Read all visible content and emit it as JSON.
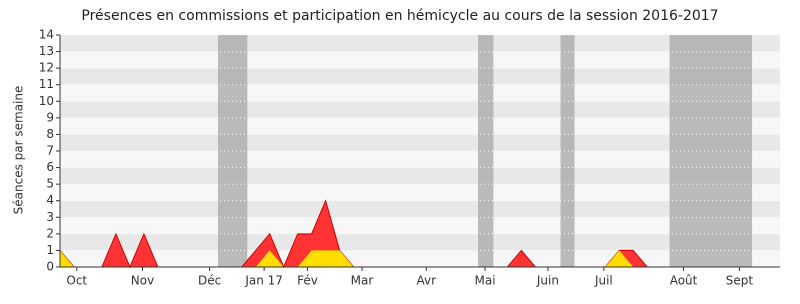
{
  "chart_data": {
    "type": "area",
    "title": "Présences en commissions et participation en hémicycle au cours de la session 2016-2017",
    "y_label": "Séances par semaine",
    "x": [
      0,
      1,
      2,
      3,
      4,
      5,
      6,
      7,
      8,
      9,
      10,
      11,
      12,
      13,
      14,
      15,
      16,
      17,
      18,
      19,
      20,
      21,
      22,
      23,
      24,
      25,
      26,
      27,
      28,
      29,
      30,
      31,
      32,
      33,
      34,
      35,
      36,
      37,
      38,
      39,
      40,
      41,
      42,
      43,
      44,
      45,
      46,
      47,
      48,
      49,
      50,
      51
    ],
    "series": [
      {
        "color": "#ff3333",
        "values": [
          1,
          0,
          0,
          0,
          2,
          0,
          2,
          0,
          0,
          0,
          0,
          0,
          0,
          0,
          1,
          2,
          0,
          2,
          2,
          4,
          1,
          0,
          0,
          0,
          0,
          0,
          0,
          0,
          0,
          0,
          0,
          0,
          0,
          1,
          0,
          0,
          0,
          0,
          0,
          0,
          1,
          1,
          0,
          0,
          0,
          0,
          0,
          0,
          0,
          0,
          0,
          0
        ]
      },
      {
        "color": "#ffdd00",
        "values": [
          1,
          0,
          0,
          0,
          0,
          0,
          0,
          0,
          0,
          0,
          0,
          0,
          0,
          0,
          0,
          1,
          0,
          0,
          1,
          1,
          1,
          0,
          0,
          0,
          0,
          0,
          0,
          0,
          0,
          0,
          0,
          0,
          0,
          0,
          0,
          0,
          0,
          0,
          0,
          0,
          1,
          0,
          0,
          0,
          0,
          0,
          0,
          0,
          0,
          0,
          0,
          0
        ]
      }
    ],
    "shaded_ranges": [
      [
        11.3,
        13.4
      ],
      [
        29.9,
        31.0
      ],
      [
        35.8,
        36.8
      ],
      [
        43.6,
        49.5
      ]
    ],
    "xlim": [
      0,
      51.5
    ],
    "xticks": [
      {
        "value": 1.2,
        "label": "Oct"
      },
      {
        "value": 5.9,
        "label": "Nov"
      },
      {
        "value": 10.7,
        "label": "Déc"
      },
      {
        "value": 14.6,
        "label": "Jan 17"
      },
      {
        "value": 17.7,
        "label": "Fév"
      },
      {
        "value": 21.6,
        "label": "Mar"
      },
      {
        "value": 26.2,
        "label": "Avr"
      },
      {
        "value": 30.4,
        "label": "Mai"
      },
      {
        "value": 34.9,
        "label": "Juin"
      },
      {
        "value": 38.9,
        "label": "Juil"
      },
      {
        "value": 44.6,
        "label": "Août"
      },
      {
        "value": 48.6,
        "label": "Sept"
      }
    ],
    "ylim": [
      0,
      14
    ],
    "yticks": [
      0,
      1,
      2,
      3,
      4,
      5,
      6,
      7,
      8,
      9,
      10,
      11,
      12,
      13,
      14
    ]
  }
}
